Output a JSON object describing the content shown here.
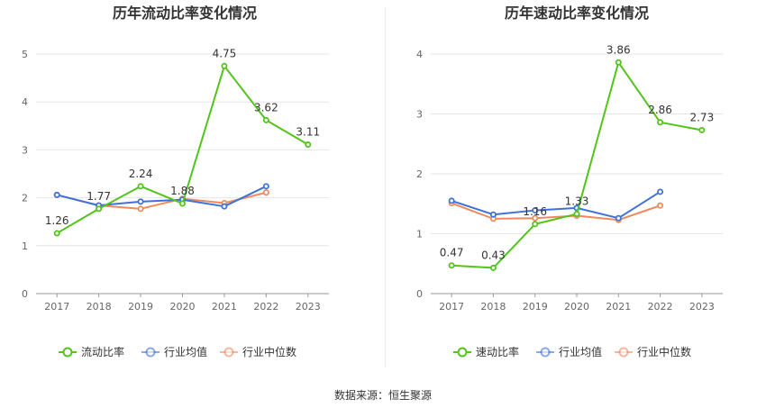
{
  "source_text": "数据来源：恒生聚源",
  "colors": {
    "company": "#52c41a",
    "industry_avg": "#3f72d9",
    "industry_median": "#f08a5d",
    "grid": "#e6e6e6",
    "axis_text": "#666666"
  },
  "chart_data": [
    {
      "type": "line",
      "title": "历年流动比率变化情况",
      "categories": [
        "2017",
        "2018",
        "2019",
        "2020",
        "2021",
        "2022",
        "2023"
      ],
      "ylim": [
        0,
        5
      ],
      "yticks": [
        0,
        1,
        2,
        3,
        4,
        5
      ],
      "grid": true,
      "legend_position": "bottom",
      "series": [
        {
          "name": "流动比率",
          "values": [
            1.26,
            1.77,
            2.24,
            1.88,
            4.75,
            3.62,
            3.11
          ],
          "labels": [
            "1.26",
            "1.77",
            "2.24",
            "1.88",
            "4.75",
            "3.62",
            "3.11"
          ]
        },
        {
          "name": "行业均值",
          "values": [
            2.06,
            1.84,
            1.92,
            1.96,
            1.82,
            2.24,
            null
          ]
        },
        {
          "name": "行业中位数",
          "values": [
            2.06,
            1.84,
            1.77,
            1.98,
            1.89,
            2.11,
            null
          ]
        }
      ]
    },
    {
      "type": "line",
      "title": "历年速动比率变化情况",
      "categories": [
        "2017",
        "2018",
        "2019",
        "2020",
        "2021",
        "2022",
        "2023"
      ],
      "ylim": [
        0,
        4
      ],
      "yticks": [
        0,
        1,
        2,
        3,
        4
      ],
      "grid": true,
      "legend_position": "bottom",
      "series": [
        {
          "name": "速动比率",
          "values": [
            0.47,
            0.43,
            1.16,
            1.33,
            3.86,
            2.86,
            2.73
          ],
          "labels": [
            "0.47",
            "0.43",
            "1.16",
            "1.33",
            "3.86",
            "2.86",
            "2.73"
          ]
        },
        {
          "name": "行业均值",
          "values": [
            1.55,
            1.32,
            1.39,
            1.43,
            1.26,
            1.7,
            null
          ]
        },
        {
          "name": "行业中位数",
          "values": [
            1.51,
            1.25,
            1.26,
            1.3,
            1.23,
            1.47,
            null
          ]
        }
      ]
    }
  ]
}
